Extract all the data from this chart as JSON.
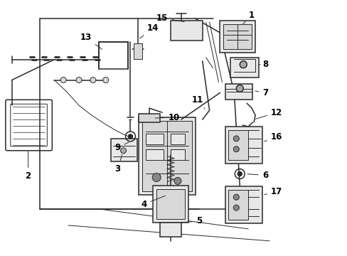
{
  "background_color": "#ffffff",
  "line_color": "#2a2a2a",
  "label_color": "#000000",
  "figsize": [
    4.89,
    3.6
  ],
  "dpi": 100,
  "border_color": "#cccccc",
  "component_fill": "#e8e8e8",
  "component_fill2": "#d8d8d8"
}
